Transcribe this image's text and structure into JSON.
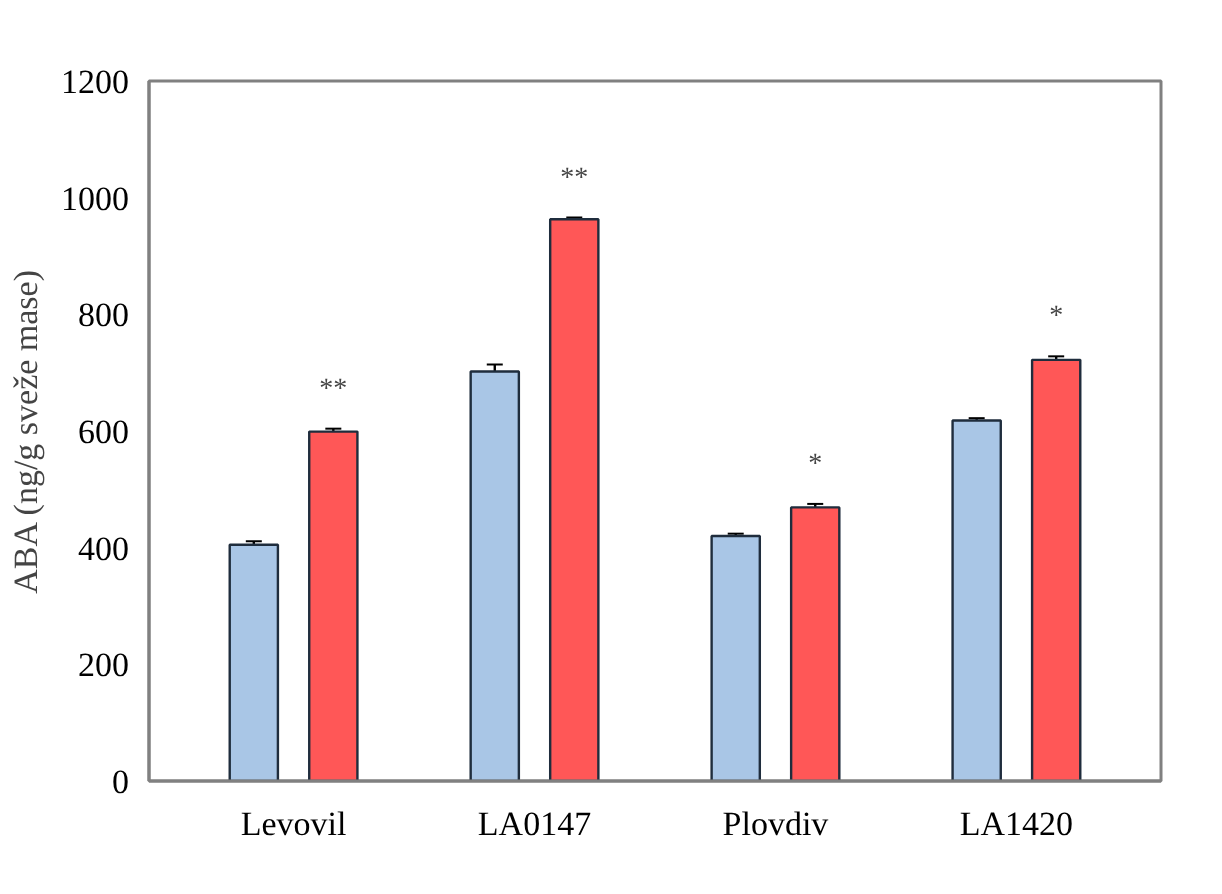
{
  "chart_data": {
    "type": "bar",
    "ylabel": "ABA (ng/g sveže mase)",
    "categories": [
      "Levovil",
      "LA0147",
      "Plovdiv",
      "LA1420"
    ],
    "series": [
      {
        "color": "#a9c6e6",
        "values": [
          405,
          702,
          420,
          618
        ],
        "errors": [
          6,
          12,
          4,
          4
        ]
      },
      {
        "color": "#ff5757",
        "values": [
          599,
          963,
          469,
          722
        ],
        "errors": [
          5,
          3,
          6,
          6
        ]
      }
    ],
    "ylim": [
      0,
      1200
    ],
    "yticks": [
      0,
      200,
      400,
      600,
      800,
      1000,
      1200
    ],
    "grid": false,
    "annotations": [
      "**",
      "**",
      "*",
      "*"
    ]
  }
}
